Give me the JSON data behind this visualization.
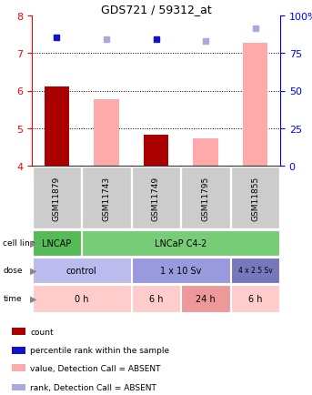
{
  "title": "GDS721 / 59312_at",
  "samples": [
    "GSM11879",
    "GSM11743",
    "GSM11749",
    "GSM11795",
    "GSM11855"
  ],
  "x_positions": [
    1,
    2,
    3,
    4,
    5
  ],
  "bar_values_red": [
    6.1,
    null,
    4.82,
    null,
    null
  ],
  "bar_values_pink": [
    null,
    5.78,
    4.77,
    4.72,
    7.28
  ],
  "dot_blue_dark": [
    7.42,
    null,
    7.36,
    null,
    null
  ],
  "dot_blue_light": [
    null,
    7.36,
    null,
    7.32,
    7.65
  ],
  "ylim": [
    4.0,
    8.0
  ],
  "yticks_left": [
    4,
    5,
    6,
    7,
    8
  ],
  "yticks_right": [
    0,
    25,
    50,
    75,
    100
  ],
  "y_right_labels": [
    "0",
    "25",
    "50",
    "75",
    "100%"
  ],
  "bar_bottom": 4.0,
  "cell_line_bg_1": "#55bb55",
  "cell_line_bg_2": "#77cc77",
  "dose_bg_1": "#bbbbee",
  "dose_bg_2": "#9999dd",
  "dose_bg_3": "#7777bb",
  "time_bg_light": "#ffcccc",
  "time_bg_medium": "#ee9999",
  "time_bg_dark": "#cc8888",
  "sample_bg": "#cccccc",
  "red_bar_color": "#aa0000",
  "pink_bar_color": "#ffaaaa",
  "blue_dark_color": "#1111cc",
  "blue_light_color": "#aaaadd",
  "legend_items": [
    {
      "color": "#aa0000",
      "label": "count"
    },
    {
      "color": "#1111cc",
      "label": "percentile rank within the sample"
    },
    {
      "color": "#ffaaaa",
      "label": "value, Detection Call = ABSENT"
    },
    {
      "color": "#aaaadd",
      "label": "rank, Detection Call = ABSENT"
    }
  ]
}
